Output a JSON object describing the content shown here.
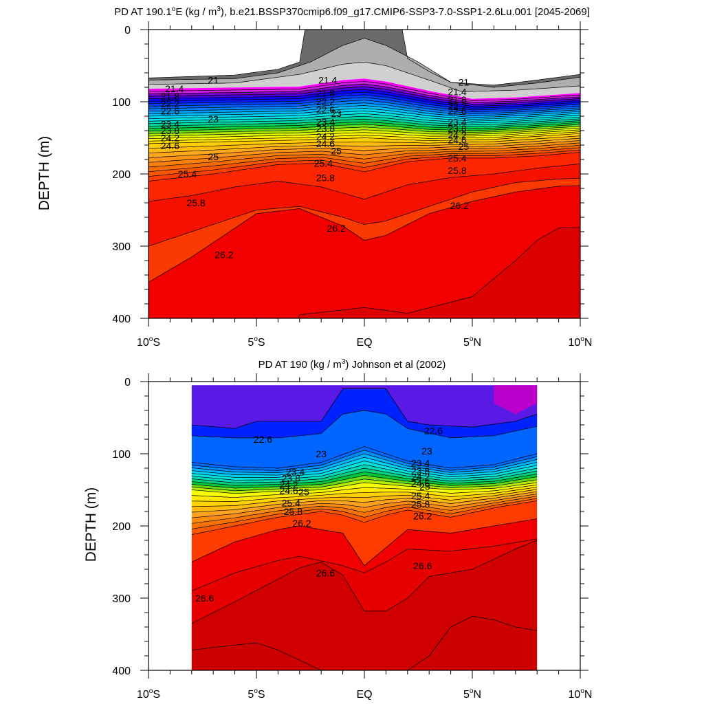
{
  "chart_data": [
    {
      "type": "contour",
      "title_main": "PD AT 190.1",
      "title_deg": "o",
      "title_e": "E (kg / m",
      "title_cubed": "3",
      "title_rest": "), b.e21.BSSP370cmip6.f09_g17.CMIP6-SSP3-7.0-SSP1-2.6Lu.001 [2045-2069]",
      "ylabel": "DEPTH (m)",
      "xlabel": "",
      "xlim": [
        -10,
        10
      ],
      "ylim": [
        400,
        0
      ],
      "x_ticks": [
        {
          "v": -10,
          "num": "10",
          "deg": "o",
          "hem": "S"
        },
        {
          "v": -5,
          "num": "5",
          "deg": "o",
          "hem": "S"
        },
        {
          "v": 0,
          "num": "EQ",
          "deg": "",
          "hem": ""
        },
        {
          "v": 5,
          "num": "5",
          "deg": "o",
          "hem": "N"
        },
        {
          "v": 10,
          "num": "10",
          "deg": "o",
          "hem": "N"
        }
      ],
      "y_ticks": [
        {
          "v": 0,
          "label": "0"
        },
        {
          "v": 100,
          "label": "100"
        },
        {
          "v": 200,
          "label": "200"
        },
        {
          "v": 300,
          "label": "300"
        },
        {
          "v": 400,
          "label": "400"
        }
      ],
      "contour_labels": [
        {
          "text": "21",
          "x": -7.0,
          "y": 70
        },
        {
          "text": "21.4",
          "x": -8.8,
          "y": 82
        },
        {
          "text": "21.8",
          "x": -9.0,
          "y": 93
        },
        {
          "text": "22.2",
          "x": -9.0,
          "y": 103
        },
        {
          "text": "22.6",
          "x": -9.0,
          "y": 113
        },
        {
          "text": "23",
          "x": -7.0,
          "y": 124
        },
        {
          "text": "23.4",
          "x": -9.0,
          "y": 131
        },
        {
          "text": "23.8",
          "x": -9.0,
          "y": 140
        },
        {
          "text": "24.2",
          "x": -9.0,
          "y": 150
        },
        {
          "text": "24.6",
          "x": -9.0,
          "y": 161
        },
        {
          "text": "25",
          "x": -7.0,
          "y": 176
        },
        {
          "text": "25.4",
          "x": -8.2,
          "y": 200
        },
        {
          "text": "25.8",
          "x": -7.8,
          "y": 240
        },
        {
          "text": "26.2",
          "x": -6.5,
          "y": 312
        },
        {
          "text": "21.4",
          "x": -1.7,
          "y": 70
        },
        {
          "text": "21.8",
          "x": -1.8,
          "y": 88
        },
        {
          "text": "22.2",
          "x": -1.8,
          "y": 100
        },
        {
          "text": "22.6",
          "x": -1.8,
          "y": 111
        },
        {
          "text": "23",
          "x": -1.3,
          "y": 116
        },
        {
          "text": "23.4",
          "x": -1.8,
          "y": 128
        },
        {
          "text": "23.8",
          "x": -1.8,
          "y": 137
        },
        {
          "text": "24.2",
          "x": -1.8,
          "y": 148
        },
        {
          "text": "24.6",
          "x": -1.8,
          "y": 158
        },
        {
          "text": "25",
          "x": -1.3,
          "y": 168
        },
        {
          "text": "25.4",
          "x": -1.9,
          "y": 185
        },
        {
          "text": "25.8",
          "x": -1.8,
          "y": 205
        },
        {
          "text": "26.2",
          "x": -1.3,
          "y": 275
        },
        {
          "text": "21",
          "x": 4.6,
          "y": 73
        },
        {
          "text": "21.4",
          "x": 4.3,
          "y": 86
        },
        {
          "text": "21.8",
          "x": 4.3,
          "y": 97
        },
        {
          "text": "22.2",
          "x": 4.3,
          "y": 106
        },
        {
          "text": "22.6",
          "x": 4.3,
          "y": 113
        },
        {
          "text": "23.4",
          "x": 4.3,
          "y": 128
        },
        {
          "text": "23.8",
          "x": 4.3,
          "y": 137
        },
        {
          "text": "24.2",
          "x": 4.3,
          "y": 146
        },
        {
          "text": "24.6",
          "x": 4.3,
          "y": 153
        },
        {
          "text": "25",
          "x": 4.6,
          "y": 162
        },
        {
          "text": "25.4",
          "x": 4.3,
          "y": 178
        },
        {
          "text": "25.8",
          "x": 4.3,
          "y": 195
        },
        {
          "text": "26.2",
          "x": 4.4,
          "y": 244
        }
      ]
    },
    {
      "type": "contour",
      "title_main": "PD AT 190 (kg / m",
      "title_cubed": "3",
      "title_rest": ") Johnson et al (2002)",
      "ylabel": "DEPTH (m)",
      "xlabel": "",
      "xlim": [
        -10,
        10
      ],
      "ylim": [
        400,
        0
      ],
      "data_xrange": [
        -8,
        8
      ],
      "x_ticks": [
        {
          "v": -10,
          "num": "10",
          "deg": "o",
          "hem": "S"
        },
        {
          "v": -5,
          "num": "5",
          "deg": "o",
          "hem": "S"
        },
        {
          "v": 0,
          "num": "EQ",
          "deg": "",
          "hem": ""
        },
        {
          "v": 5,
          "num": "5",
          "deg": "o",
          "hem": "N"
        },
        {
          "v": 10,
          "num": "10",
          "deg": "o",
          "hem": "N"
        }
      ],
      "y_ticks": [
        {
          "v": 0,
          "label": "0"
        },
        {
          "v": 100,
          "label": "100"
        },
        {
          "v": 200,
          "label": "200"
        },
        {
          "v": 300,
          "label": "300"
        },
        {
          "v": 400,
          "label": "400"
        }
      ],
      "contour_labels": [
        {
          "text": "22.6",
          "x": -4.7,
          "y": 80
        },
        {
          "text": "23",
          "x": -2.0,
          "y": 100
        },
        {
          "text": "23.4",
          "x": -3.2,
          "y": 125
        },
        {
          "text": "23.8",
          "x": -3.4,
          "y": 134
        },
        {
          "text": "24.2",
          "x": -3.5,
          "y": 143
        },
        {
          "text": "24.6",
          "x": -3.5,
          "y": 151
        },
        {
          "text": "25",
          "x": -2.8,
          "y": 153
        },
        {
          "text": "25.4",
          "x": -3.4,
          "y": 168
        },
        {
          "text": "25.8",
          "x": -3.3,
          "y": 180
        },
        {
          "text": "26.2",
          "x": -2.9,
          "y": 196
        },
        {
          "text": "26.6",
          "x": -1.8,
          "y": 265
        },
        {
          "text": "26.6",
          "x": -7.4,
          "y": 300
        },
        {
          "text": "22.6",
          "x": 3.2,
          "y": 68
        },
        {
          "text": "23",
          "x": 2.9,
          "y": 96
        },
        {
          "text": "23.4",
          "x": 2.6,
          "y": 113
        },
        {
          "text": "23.8",
          "x": 2.6,
          "y": 124
        },
        {
          "text": "24.2",
          "x": 2.6,
          "y": 132
        },
        {
          "text": "24.6",
          "x": 2.6,
          "y": 141
        },
        {
          "text": "25",
          "x": 2.8,
          "y": 145
        },
        {
          "text": "25.4",
          "x": 2.6,
          "y": 158
        },
        {
          "text": "25.8",
          "x": 2.6,
          "y": 170
        },
        {
          "text": "26.2",
          "x": 2.7,
          "y": 186
        },
        {
          "text": "26.6",
          "x": 2.7,
          "y": 255
        }
      ]
    }
  ]
}
